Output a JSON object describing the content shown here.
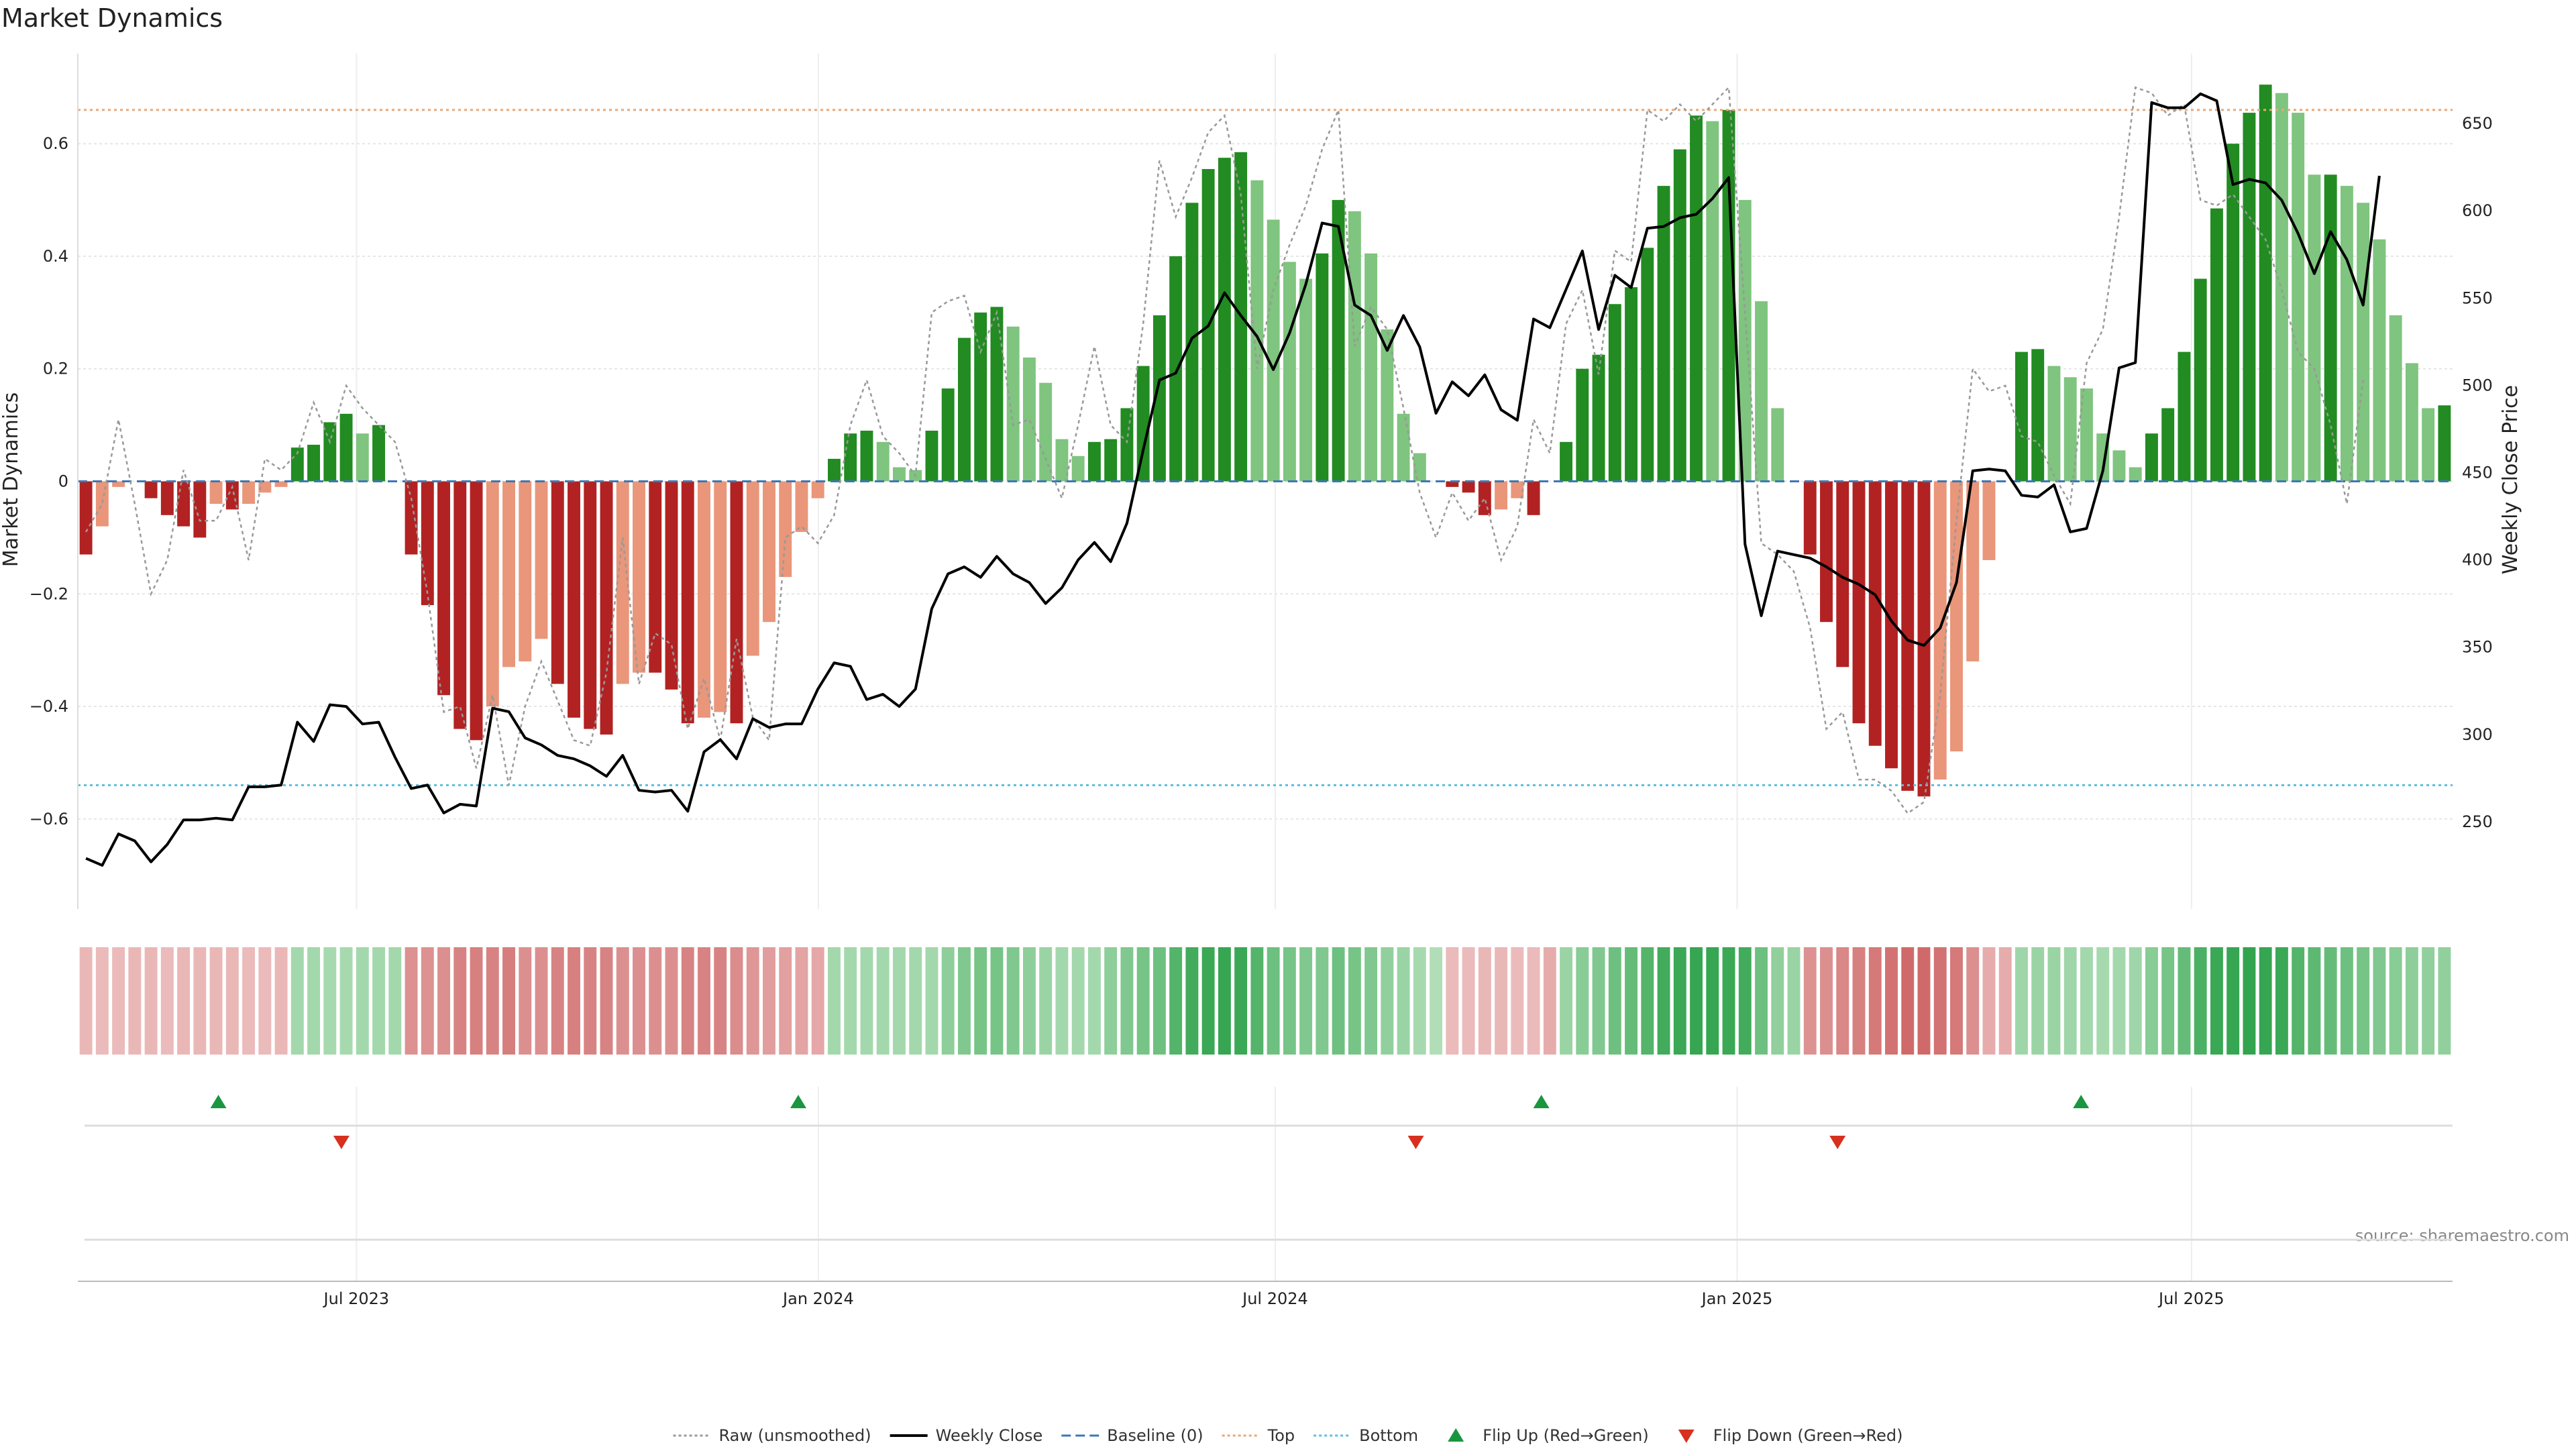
{
  "chart_data": {
    "type": "bar",
    "title": "Market Dynamics",
    "ylabel_left": "Market Dynamics",
    "ylabel_right": "Weekly Close Price",
    "source": "source: sharemaestro.com",
    "ylim_left": [
      -0.76,
      0.76
    ],
    "ylim_right": [
      200,
      690
    ],
    "yticks_left": [
      -0.6,
      -0.4,
      -0.2,
      0,
      0.2,
      0.4,
      0.6
    ],
    "yticks_left_labels": [
      "−0.6",
      "−0.4",
      "−0.2",
      "0",
      "0.2",
      "0.4",
      "0.6"
    ],
    "yticks_right": [
      250,
      300,
      350,
      400,
      450,
      500,
      550,
      600,
      650
    ],
    "yticks_right_labels": [
      "250",
      "300",
      "350",
      "400",
      "450",
      "500",
      "550",
      "600",
      "650"
    ],
    "x_start": "2023-03-12",
    "x_end": "2025-10-13",
    "xticks": [
      {
        "date": "2023-07-01",
        "label": "Jul 2023"
      },
      {
        "date": "2024-01-01",
        "label": "Jan 2024"
      },
      {
        "date": "2024-07-01",
        "label": "Jul 2024"
      },
      {
        "date": "2025-01-01",
        "label": "Jan 2025"
      },
      {
        "date": "2025-07-01",
        "label": "Jul 2025"
      }
    ],
    "top_level": 0.66,
    "bottom_level": -0.54,
    "grid": true,
    "legend_position": "bottom-center",
    "colors": {
      "bar_pos_strong": "#228b22",
      "bar_pos_weak": "#7fc47f",
      "bar_neg_strong": "#b22222",
      "bar_neg_weak": "#e9967a",
      "close": "#000000",
      "raw": "#999999",
      "baseline": "#3b78b4",
      "top": "#e8a878",
      "bottom": "#5bc0de",
      "flip_up": "#1a9641",
      "flip_down": "#d7301f"
    },
    "series": [
      {
        "name": "Weekly Close",
        "values": [
          229,
          225,
          243,
          239,
          227,
          237,
          251,
          251,
          252,
          251,
          270,
          270,
          271,
          307,
          296,
          317,
          316,
          306,
          307,
          287,
          269,
          271,
          255,
          260,
          259,
          315,
          313,
          298,
          294,
          288,
          286,
          282,
          276,
          288,
          268,
          267,
          268,
          256,
          290,
          297,
          286,
          309,
          304,
          306,
          306,
          326,
          341,
          339,
          320,
          323,
          316,
          326,
          372,
          392,
          396,
          390,
          402,
          392,
          387,
          375,
          384,
          400,
          410,
          399,
          421,
          463,
          503,
          507,
          527,
          534,
          553,
          540,
          528,
          509,
          530,
          558,
          593,
          591,
          546,
          540,
          520,
          540,
          522,
          484,
          502,
          494,
          506,
          486,
          480,
          538,
          533,
          555,
          577,
          532,
          563,
          556,
          590,
          591,
          596,
          598,
          607,
          619,
          409,
          368,
          405,
          403,
          401,
          396,
          390,
          386,
          380,
          365,
          354,
          351,
          361,
          387,
          451,
          452,
          451,
          437,
          436,
          443,
          416,
          418,
          451,
          510,
          513,
          662,
          659,
          659,
          667,
          663,
          615,
          618,
          616,
          606,
          587,
          564,
          588,
          572,
          546,
          620
        ],
        "line_style": "solid"
      },
      {
        "name": "Raw (unsmoothed)",
        "values": [
          -0.09,
          -0.04,
          0.11,
          -0.04,
          -0.2,
          -0.14,
          0.02,
          -0.07,
          -0.07,
          -0.01,
          -0.14,
          0.04,
          0.02,
          0.05,
          0.14,
          0.07,
          0.17,
          0.13,
          0.1,
          0.07,
          -0.03,
          -0.2,
          -0.41,
          -0.4,
          -0.51,
          -0.38,
          -0.54,
          -0.4,
          -0.32,
          -0.39,
          -0.46,
          -0.47,
          -0.34,
          -0.1,
          -0.36,
          -0.27,
          -0.29,
          -0.44,
          -0.35,
          -0.46,
          -0.28,
          -0.42,
          -0.46,
          -0.1,
          -0.08,
          -0.11,
          -0.06,
          0.1,
          0.18,
          0.08,
          0.05,
          0.01,
          0.3,
          0.32,
          0.33,
          0.23,
          0.3,
          0.1,
          0.11,
          0.04,
          -0.03,
          0.1,
          0.24,
          0.1,
          0.07,
          0.28,
          0.57,
          0.47,
          0.54,
          0.62,
          0.65,
          0.51,
          0.2,
          0.34,
          0.42,
          0.49,
          0.59,
          0.66,
          0.24,
          0.31,
          0.27,
          0.13,
          -0.02,
          -0.1,
          -0.02,
          -0.07,
          -0.03,
          -0.14,
          -0.08,
          0.11,
          0.05,
          0.28,
          0.34,
          0.19,
          0.41,
          0.39,
          0.66,
          0.64,
          0.67,
          0.64,
          0.67,
          0.7,
          0.3,
          -0.11,
          -0.13,
          -0.16,
          -0.26,
          -0.44,
          -0.41,
          -0.53,
          -0.53,
          -0.55,
          -0.59,
          -0.57,
          -0.38,
          -0.07,
          0.2,
          0.16,
          0.17,
          0.08,
          0.07,
          0.01,
          -0.04,
          0.21,
          0.27,
          0.47,
          0.7,
          0.69,
          0.65,
          0.67,
          0.5,
          0.49,
          0.51,
          0.47,
          0.43,
          0.34,
          0.23,
          0.2,
          0.1,
          -0.04,
          0.18
        ],
        "line_style": "dotted"
      },
      {
        "name": "Market Dynamics (bars)",
        "values": [
          -0.13,
          -0.08,
          -0.01,
          0,
          -0.03,
          -0.06,
          -0.08,
          -0.1,
          -0.04,
          -0.05,
          -0.04,
          -0.02,
          -0.01,
          0.06,
          0.065,
          0.105,
          0.12,
          0.085,
          0.1,
          0,
          -0.13,
          -0.22,
          -0.38,
          -0.44,
          -0.46,
          -0.4,
          -0.33,
          -0.32,
          -0.28,
          -0.36,
          -0.42,
          -0.44,
          -0.45,
          -0.36,
          -0.34,
          -0.34,
          -0.37,
          -0.43,
          -0.42,
          -0.41,
          -0.43,
          -0.31,
          -0.25,
          -0.17,
          -0.09,
          -0.03,
          0.04,
          0.085,
          0.09,
          0.07,
          0.025,
          0.02,
          0.09,
          0.165,
          0.255,
          0.3,
          0.31,
          0.275,
          0.22,
          0.175,
          0.075,
          0.045,
          0.07,
          0.075,
          0.13,
          0.205,
          0.295,
          0.4,
          0.495,
          0.555,
          0.575,
          0.585,
          0.535,
          0.465,
          0.39,
          0.36,
          0.405,
          0.5,
          0.48,
          0.405,
          0.27,
          0.12,
          0.05,
          0,
          -0.01,
          -0.02,
          -0.06,
          -0.05,
          -0.03,
          -0.06,
          0,
          0.07,
          0.2,
          0.225,
          0.315,
          0.345,
          0.415,
          0.525,
          0.59,
          0.65,
          0.64,
          0.66,
          0.5,
          0.32,
          0.13,
          0,
          -0.13,
          -0.25,
          -0.33,
          -0.43,
          -0.47,
          -0.51,
          -0.55,
          -0.56,
          -0.53,
          -0.48,
          -0.32,
          -0.14,
          0,
          0.23,
          0.235,
          0.205,
          0.185,
          0.165,
          0.085,
          0.055,
          0.025,
          0.085,
          0.13,
          0.23,
          0.36,
          0.485,
          0.6,
          0.655,
          0.705,
          0.69,
          0.655,
          0.545,
          0.545,
          0.525,
          0.495,
          0.43,
          0.295,
          0.21,
          0.13,
          0.135
        ]
      },
      {
        "name": "Flip Up (Red→Green)",
        "dates": [
          "2023-05-07",
          "2023-12-24",
          "2024-10-15",
          "2025-05-18"
        ]
      },
      {
        "name": "Flip Down (Green→Red)",
        "dates": [
          "2023-06-25",
          "2024-08-26",
          "2025-02-10"
        ]
      }
    ],
    "heat_strip": [
      0.22,
      0.2,
      0.2,
      0.22,
      0.22,
      0.2,
      0.22,
      0.22,
      0.22,
      0.22,
      0.2,
      0.2,
      0.22,
      0.3,
      0.3,
      0.28,
      0.28,
      0.3,
      0.3,
      0.3,
      0.48,
      0.48,
      0.5,
      0.58,
      0.6,
      0.58,
      0.62,
      0.5,
      0.5,
      0.58,
      0.6,
      0.58,
      0.58,
      0.5,
      0.5,
      0.5,
      0.5,
      0.58,
      0.58,
      0.58,
      0.52,
      0.45,
      0.4,
      0.38,
      0.35,
      0.33,
      0.3,
      0.3,
      0.3,
      0.3,
      0.3,
      0.3,
      0.3,
      0.42,
      0.5,
      0.55,
      0.55,
      0.5,
      0.42,
      0.35,
      0.3,
      0.3,
      0.3,
      0.42,
      0.5,
      0.55,
      0.6,
      0.75,
      0.85,
      0.9,
      0.92,
      0.9,
      0.75,
      0.6,
      0.55,
      0.5,
      0.5,
      0.6,
      0.55,
      0.5,
      0.4,
      0.35,
      0.28,
      0.22,
      0.2,
      0.2,
      0.22,
      0.22,
      0.2,
      0.2,
      0.3,
      0.35,
      0.45,
      0.5,
      0.6,
      0.65,
      0.75,
      0.85,
      0.9,
      0.92,
      0.92,
      0.9,
      0.85,
      0.6,
      0.4,
      0.35,
      0.48,
      0.5,
      0.55,
      0.6,
      0.65,
      0.7,
      0.75,
      0.75,
      0.7,
      0.65,
      0.5,
      0.3,
      0.3,
      0.32,
      0.35,
      0.35,
      0.32,
      0.3,
      0.28,
      0.3,
      0.32,
      0.45,
      0.55,
      0.65,
      0.8,
      0.9,
      0.92,
      0.95,
      0.92,
      0.9,
      0.75,
      0.7,
      0.65,
      0.6,
      0.55,
      0.5,
      0.45,
      0.42,
      0.4,
      0.4
    ],
    "legend": [
      {
        "label": "Raw (unsmoothed)",
        "kind": "dotted",
        "color": "#999999"
      },
      {
        "label": "Weekly Close",
        "kind": "solid",
        "color": "#000000"
      },
      {
        "label": "Baseline (0)",
        "kind": "dashed",
        "color": "#3b78b4"
      },
      {
        "label": "Top",
        "kind": "dotted",
        "color": "#e8a878"
      },
      {
        "label": "Bottom",
        "kind": "dotted",
        "color": "#5bc0de"
      },
      {
        "label": "Flip Up (Red→Green)",
        "kind": "tri-up",
        "color": "#1a9641"
      },
      {
        "label": "Flip Down (Green→Red)",
        "kind": "tri-down",
        "color": "#d7301f"
      }
    ]
  }
}
